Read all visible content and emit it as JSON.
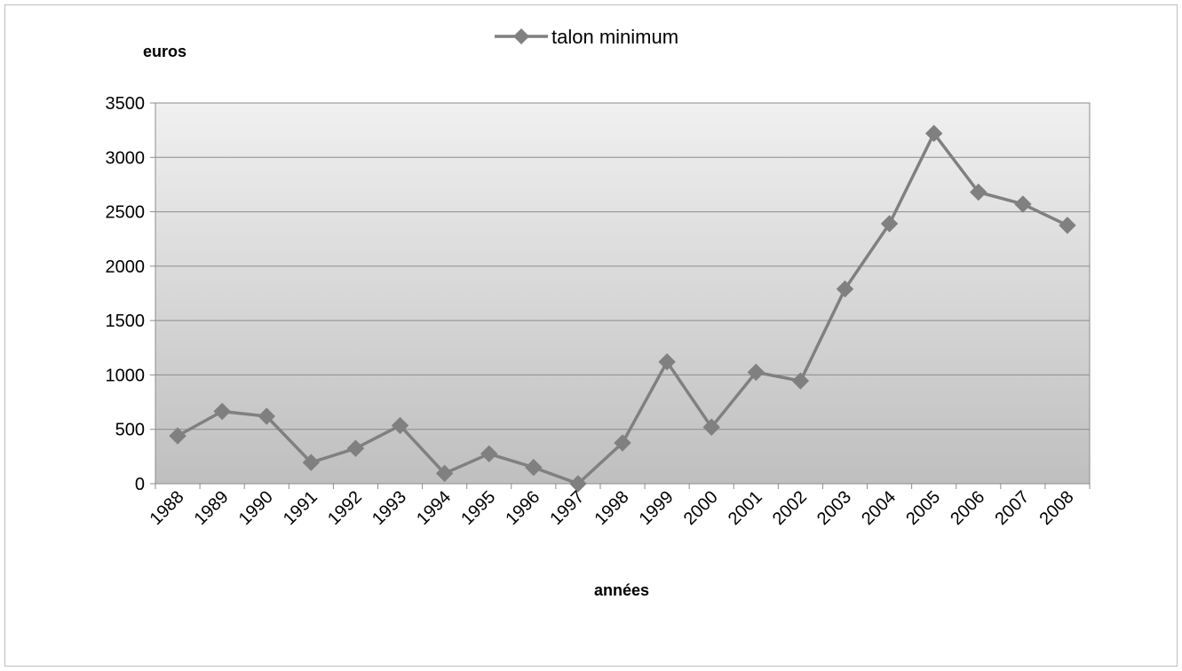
{
  "chart_data": {
    "type": "line",
    "title": "",
    "xlabel": "années",
    "ylabel": "euros",
    "categories": [
      "1988",
      "1989",
      "1990",
      "1991",
      "1992",
      "1993",
      "1994",
      "1995",
      "1996",
      "1997",
      "1998",
      "1999",
      "2000",
      "2001",
      "2002",
      "2003",
      "2004",
      "2005",
      "2006",
      "2007",
      "2008"
    ],
    "series": [
      {
        "name": "talon minimum",
        "values": [
          440,
          665,
          620,
          195,
          325,
          535,
          95,
          275,
          150,
          0,
          375,
          1120,
          520,
          1025,
          945,
          1790,
          2390,
          3220,
          2680,
          2570,
          2375
        ],
        "color": "#808080",
        "marker": "diamond"
      }
    ],
    "ylim": [
      0,
      3500
    ],
    "yticks": [
      0,
      500,
      1000,
      1500,
      2000,
      2500,
      3000,
      3500
    ],
    "grid": true,
    "legend_position": "top-center",
    "plot_background": "gradient-gray"
  }
}
